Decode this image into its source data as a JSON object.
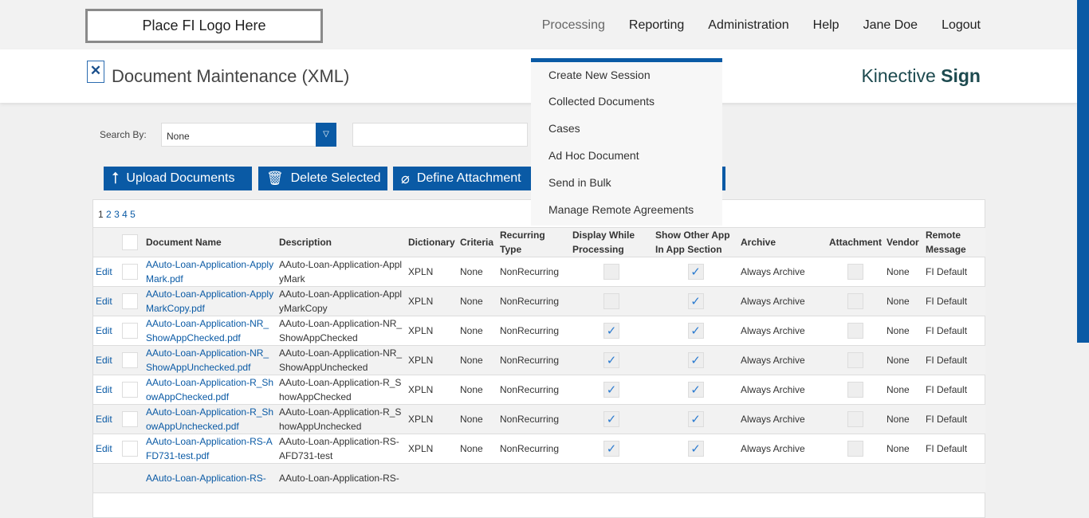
{
  "topbar": {
    "logo": "Place FI Logo Here",
    "nav": [
      "Processing",
      "Reporting",
      "Administration",
      "Help",
      "Jane Doe",
      "Logout"
    ]
  },
  "header": {
    "title": "Document Maintenance (XML)",
    "brand_light": "Kinective ",
    "brand_bold": "Sign"
  },
  "search": {
    "label": "Search By:",
    "selected": "None",
    "value": ""
  },
  "toolbar": {
    "upload": "Upload Documents",
    "delete": "Delete Selected",
    "define": "Define Attachment"
  },
  "menu": [
    "Create New Session",
    "Collected Documents",
    "Cases",
    "Ad Hoc Document",
    "Send in Bulk",
    "Manage Remote Agreements"
  ],
  "pager": [
    "1",
    "2",
    "3",
    "4",
    "5"
  ],
  "table": {
    "headers": [
      "",
      "",
      "Document Name",
      "Description",
      "Dictionary",
      "Criteria",
      "Recurring Type",
      "Display While Processing",
      "Show Other App In App Section",
      "Archive",
      "Attachment",
      "Vendor",
      "Remote Message"
    ],
    "rows": [
      {
        "edit": "Edit",
        "name": "AAuto-Loan-Application-ApplyMark.pdf",
        "desc": "AAuto-Loan-Application-ApplyMark",
        "dict": "XPLN",
        "criteria": "None",
        "recurring": "NonRecurring",
        "display": false,
        "show_other": true,
        "archive": "Always Archive",
        "attachment": false,
        "vendor": "None",
        "remote": "FI Default"
      },
      {
        "edit": "Edit",
        "name": "AAuto-Loan-Application-ApplyMarkCopy.pdf",
        "desc": "AAuto-Loan-Application-ApplyMarkCopy",
        "dict": "XPLN",
        "criteria": "None",
        "recurring": "NonRecurring",
        "display": false,
        "show_other": true,
        "archive": "Always Archive",
        "attachment": false,
        "vendor": "None",
        "remote": "FI Default"
      },
      {
        "edit": "Edit",
        "name": "AAuto-Loan-Application-NR_ShowAppChecked.pdf",
        "desc": "AAuto-Loan-Application-NR_ShowAppChecked",
        "dict": "XPLN",
        "criteria": "None",
        "recurring": "NonRecurring",
        "display": true,
        "show_other": true,
        "archive": "Always Archive",
        "attachment": false,
        "vendor": "None",
        "remote": "FI Default"
      },
      {
        "edit": "Edit",
        "name": "AAuto-Loan-Application-NR_ShowAppUnchecked.pdf",
        "desc": "AAuto-Loan-Application-NR_ShowAppUnchecked",
        "dict": "XPLN",
        "criteria": "None",
        "recurring": "NonRecurring",
        "display": true,
        "show_other": true,
        "archive": "Always Archive",
        "attachment": false,
        "vendor": "None",
        "remote": "FI Default"
      },
      {
        "edit": "Edit",
        "name": "AAuto-Loan-Application-R_ShowAppChecked.pdf",
        "desc": "AAuto-Loan-Application-R_ShowAppChecked",
        "dict": "XPLN",
        "criteria": "None",
        "recurring": "NonRecurring",
        "display": true,
        "show_other": true,
        "archive": "Always Archive",
        "attachment": false,
        "vendor": "None",
        "remote": "FI Default"
      },
      {
        "edit": "Edit",
        "name": "AAuto-Loan-Application-R_ShowAppUnchecked.pdf",
        "desc": "AAuto-Loan-Application-R_ShowAppUnchecked",
        "dict": "XPLN",
        "criteria": "None",
        "recurring": "NonRecurring",
        "display": true,
        "show_other": true,
        "archive": "Always Archive",
        "attachment": false,
        "vendor": "None",
        "remote": "FI Default"
      },
      {
        "edit": "Edit",
        "name": "AAuto-Loan-Application-RS-AFD731-test.pdf",
        "desc": "AAuto-Loan-Application-RS-AFD731-test",
        "dict": "XPLN",
        "criteria": "None",
        "recurring": "NonRecurring",
        "display": true,
        "show_other": true,
        "archive": "Always Archive",
        "attachment": false,
        "vendor": "None",
        "remote": "FI Default"
      },
      {
        "edit": "",
        "name": "AAuto-Loan-Application-RS-",
        "desc": "AAuto-Loan-Application-RS-",
        "dict": "",
        "criteria": "",
        "recurring": "",
        "display": null,
        "show_other": null,
        "archive": "",
        "attachment": null,
        "vendor": "",
        "remote": ""
      }
    ]
  },
  "colors": {
    "primary": "#0a5aa5",
    "link": "#0a5aa5",
    "check": "#2b7bd0"
  }
}
